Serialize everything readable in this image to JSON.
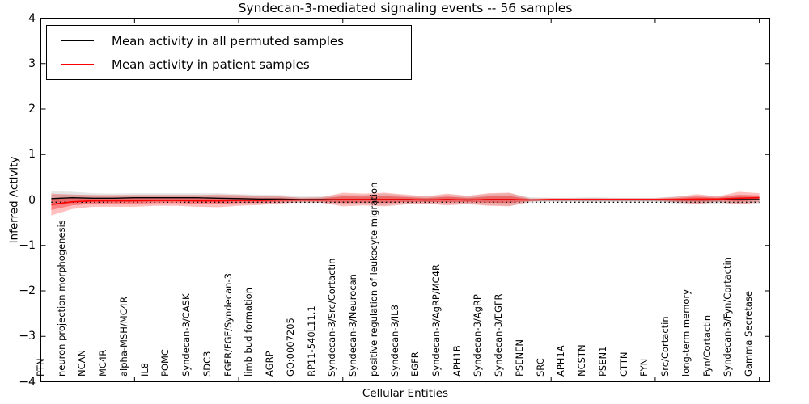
{
  "chart_data": {
    "type": "line",
    "title": "Syndecan-3-mediated signaling events -- 56 samples",
    "xlabel": "Cellular Entities",
    "ylabel": "Inferred Activity",
    "ylim": [
      -4,
      4
    ],
    "yticks": [
      4,
      3,
      2,
      1,
      0,
      -1,
      -2,
      -3,
      -4
    ],
    "x_major_tick_indices": [
      4,
      9,
      14,
      19,
      24,
      29,
      34
    ],
    "grid": false,
    "legend_position": "upper left",
    "categories": [
      "PTN",
      "neuron projection morphogenesis",
      "NCAN",
      "MC4R",
      "alpha-MSH/MC4R",
      "IL8",
      "POMC",
      "Syndecan-3/CASK",
      "SDC3",
      "FGFR/FGF/Syndecan-3",
      "limb bud formation",
      "AGRP",
      "GO:0007205",
      "RP11-540L11.1",
      "Syndecan-3/Src/Cortactin",
      "Syndecan-3/Neurocan",
      "positive regulation of leukocyte migration",
      "Syndecan-3/IL8",
      "EGFR",
      "Syndecan-3/AgRP/MC4R",
      "APH1B",
      "Syndecan-3/AgRP",
      "Syndecan-3/EGFR",
      "PSENEN",
      "SRC",
      "APH1A",
      "NCSTN",
      "PSEN1",
      "CTTN",
      "FYN",
      "Src/Cortactin",
      "long-term memory",
      "Fyn/Cortactin",
      "Syndecan-3/Fyn/Cortactin",
      "Gamma Secretase"
    ],
    "series": [
      {
        "name": "Mean activity in all permuted samples",
        "color": "#000000",
        "values": [
          0.03,
          0.05,
          0.04,
          0.04,
          0.05,
          0.05,
          0.05,
          0.05,
          0.04,
          0.03,
          0.02,
          0.02,
          0.01,
          0.01,
          0.01,
          0.01,
          0.01,
          0.01,
          0.0,
          0.01,
          0.0,
          0.01,
          0.01,
          0.0,
          0.0,
          0.0,
          0.0,
          0.0,
          0.0,
          0.0,
          0.0,
          0.0,
          0.0,
          0.01,
          0.01
        ],
        "band_half_widths": [
          0.16,
          0.13,
          0.11,
          0.1,
          0.1,
          0.1,
          0.1,
          0.1,
          0.11,
          0.1,
          0.1,
          0.09,
          0.08,
          0.08,
          0.11,
          0.1,
          0.13,
          0.09,
          0.08,
          0.1,
          0.09,
          0.12,
          0.14,
          0.06,
          0.05,
          0.05,
          0.06,
          0.05,
          0.05,
          0.05,
          0.08,
          0.09,
          0.08,
          0.11,
          0.09
        ],
        "band_color": "#808080"
      },
      {
        "name": "Mean activity in patient samples",
        "color": "#ff0000",
        "values": [
          -0.1,
          -0.04,
          -0.02,
          -0.02,
          -0.02,
          -0.01,
          -0.01,
          -0.02,
          -0.02,
          -0.01,
          -0.01,
          0.0,
          0.0,
          0.0,
          0.01,
          0.01,
          0.01,
          0.01,
          0.0,
          0.01,
          0.0,
          0.01,
          0.01,
          0.0,
          0.01,
          0.01,
          0.01,
          0.01,
          0.01,
          0.01,
          0.01,
          0.02,
          0.02,
          0.04,
          0.05
        ],
        "band_half_widths": [
          0.24,
          0.16,
          0.13,
          0.13,
          0.13,
          0.12,
          0.12,
          0.13,
          0.14,
          0.12,
          0.1,
          0.08,
          0.05,
          0.06,
          0.15,
          0.13,
          0.15,
          0.11,
          0.08,
          0.13,
          0.09,
          0.14,
          0.15,
          0.03,
          0.03,
          0.03,
          0.03,
          0.03,
          0.03,
          0.03,
          0.06,
          0.11,
          0.06,
          0.14,
          0.1
        ],
        "band_color": "#ff0000"
      }
    ],
    "zero_guide": {
      "y": -0.05,
      "style": "dotted",
      "color": "#000000"
    }
  },
  "legend": {
    "items": [
      {
        "label": "Mean activity in all permuted samples",
        "color": "#000000"
      },
      {
        "label": "Mean activity in patient samples",
        "color": "#ff0000"
      }
    ]
  }
}
